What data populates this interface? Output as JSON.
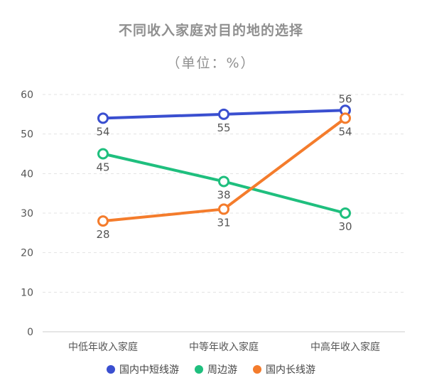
{
  "chart_data": {
    "type": "line",
    "title": "不同收入家庭对目的地的选择",
    "subtitle": "（单位：%）",
    "categories": [
      "中低年收入家庭",
      "中等年收入家庭",
      "中高年收入家庭"
    ],
    "ylim": [
      0,
      60
    ],
    "yticks": [
      0,
      10,
      20,
      30,
      40,
      50,
      60
    ],
    "grid": true,
    "legend_position": "bottom",
    "series": [
      {
        "name": "国内中短线游",
        "color": "#3a4fd0",
        "values": [
          54,
          55,
          56
        ],
        "labels": [
          "54",
          "55",
          "56"
        ]
      },
      {
        "name": "周边游",
        "color": "#1fbf7e",
        "values": [
          45,
          38,
          30
        ],
        "labels": [
          "45",
          "38",
          "30"
        ]
      },
      {
        "name": "国内长线游",
        "color": "#f47c2c",
        "values": [
          28,
          31,
          54
        ],
        "labels": [
          "28",
          "31",
          "54"
        ]
      }
    ]
  }
}
